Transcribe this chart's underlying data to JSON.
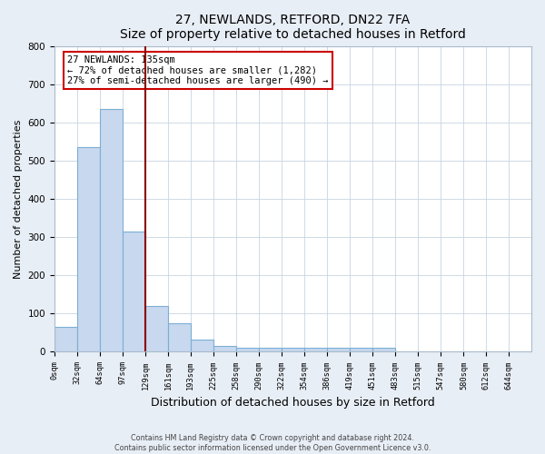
{
  "title": "27, NEWLANDS, RETFORD, DN22 7FA",
  "subtitle": "Size of property relative to detached houses in Retford",
  "xlabel": "Distribution of detached houses by size in Retford",
  "ylabel": "Number of detached properties",
  "bar_labels": [
    "0sqm",
    "32sqm",
    "64sqm",
    "97sqm",
    "129sqm",
    "161sqm",
    "193sqm",
    "225sqm",
    "258sqm",
    "290sqm",
    "322sqm",
    "354sqm",
    "386sqm",
    "419sqm",
    "451sqm",
    "483sqm",
    "515sqm",
    "547sqm",
    "580sqm",
    "612sqm",
    "644sqm"
  ],
  "bar_values": [
    65,
    535,
    635,
    315,
    120,
    75,
    33,
    15,
    10,
    10,
    10,
    10,
    10,
    10,
    10,
    0,
    0,
    0,
    0,
    0,
    0
  ],
  "bar_color": "#c8d8ee",
  "bar_edge_color": "#7bafd4",
  "property_line_x": 129,
  "property_line_label": "27 NEWLANDS: 135sqm",
  "annotation_line1": "← 72% of detached houses are smaller (1,282)",
  "annotation_line2": "27% of semi-detached houses are larger (490) →",
  "annotation_box_color": "#ffffff",
  "annotation_box_edge": "#cc0000",
  "vline_color": "#8b0000",
  "ylim": [
    0,
    800
  ],
  "bin_edges": [
    0,
    32,
    64,
    97,
    129,
    161,
    193,
    225,
    258,
    290,
    322,
    354,
    386,
    419,
    451,
    483,
    515,
    547,
    580,
    612,
    644,
    676
  ],
  "footer_line1": "Contains HM Land Registry data © Crown copyright and database right 2024.",
  "footer_line2": "Contains public sector information licensed under the Open Government Licence v3.0.",
  "bg_color": "#e8eef6",
  "plot_bg_color": "#ffffff"
}
